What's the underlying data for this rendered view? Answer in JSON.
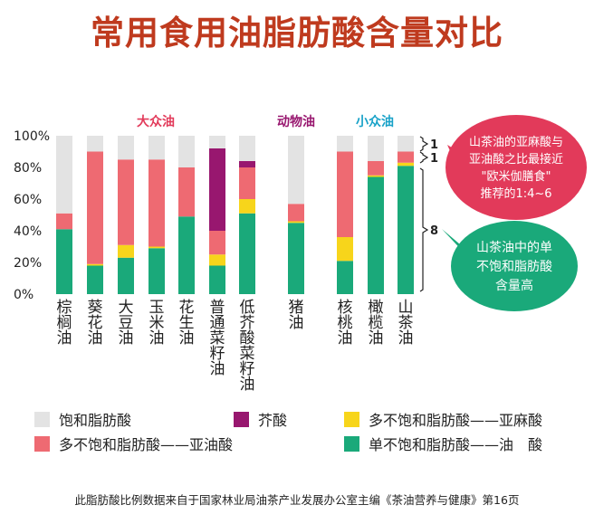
{
  "title": "常用食用油脂肪酸含量对比",
  "footer": "此脂肪酸比例数据来自于国家林业局油茶产业发展办公室主编《茶油营养与健康》第16页",
  "colors": {
    "saturated": "#e3e3e3",
    "erucic": "#98176f",
    "linolenic": "#f7d51b",
    "linoleic": "#ee6a72",
    "oleic": "#1aa97a",
    "title": "#bf3a1e"
  },
  "chart_data": {
    "type": "bar",
    "stacked": true,
    "ylim": [
      0,
      100
    ],
    "yticks": [
      "0%",
      "20%",
      "40%",
      "60%",
      "80%",
      "100%"
    ],
    "categories": [
      "棕榈油",
      "葵花油",
      "大豆油",
      "玉米油",
      "花生油",
      "普通菜籽油",
      "低芥酸菜籽油",
      "猪油",
      "核桃油",
      "橄榄油",
      "山茶油"
    ],
    "series": [
      {
        "name": "单不饱和脂肪酸——油　酸",
        "key": "oleic",
        "values": [
          41,
          18,
          23,
          29,
          49,
          18,
          51,
          45,
          21,
          74,
          81
        ]
      },
      {
        "name": "多不饱和脂肪酸——亚麻酸",
        "key": "linolenic",
        "values": [
          0,
          1,
          8,
          1,
          0,
          7,
          9,
          1,
          15,
          1,
          2
        ]
      },
      {
        "name": "多不饱和脂肪酸——亚油酸",
        "key": "linoleic",
        "values": [
          10,
          71,
          54,
          55,
          31,
          15,
          20,
          11,
          54,
          9,
          7
        ]
      },
      {
        "name": "芥酸",
        "key": "erucic",
        "values": [
          0,
          0,
          0,
          0,
          0,
          52,
          4,
          0,
          0,
          0,
          0
        ]
      },
      {
        "name": "饱和脂肪酸",
        "key": "saturated",
        "values": [
          49,
          10,
          15,
          15,
          20,
          8,
          16,
          43,
          10,
          16,
          10
        ]
      }
    ],
    "groups": [
      {
        "label": "大众油",
        "color": "#e23a5a"
      },
      {
        "label": "动物油",
        "color": "#98176f"
      },
      {
        "label": "小众油",
        "color": "#19a2c8"
      }
    ],
    "ratio_labels": [
      "1",
      "1",
      "8"
    ],
    "callout_top": [
      "山茶油的亚麻酸与",
      "亚油酸之比最接近",
      "\"欧米伽膳食\"",
      "推荐的1:4~6"
    ],
    "callout_bottom": [
      "山茶油中的单",
      "不饱和脂肪酸",
      "含量高"
    ],
    "legend": [
      {
        "key": "saturated",
        "label": "饱和脂肪酸"
      },
      {
        "key": "erucic",
        "label": "芥酸"
      },
      {
        "key": "linolenic",
        "label": "多不饱和脂肪酸——亚麻酸"
      },
      {
        "key": "linoleic",
        "label": "多不饱和脂肪酸——亚油酸"
      },
      {
        "key": "oleic",
        "label": "单不饱和脂肪酸——油　酸"
      }
    ]
  }
}
